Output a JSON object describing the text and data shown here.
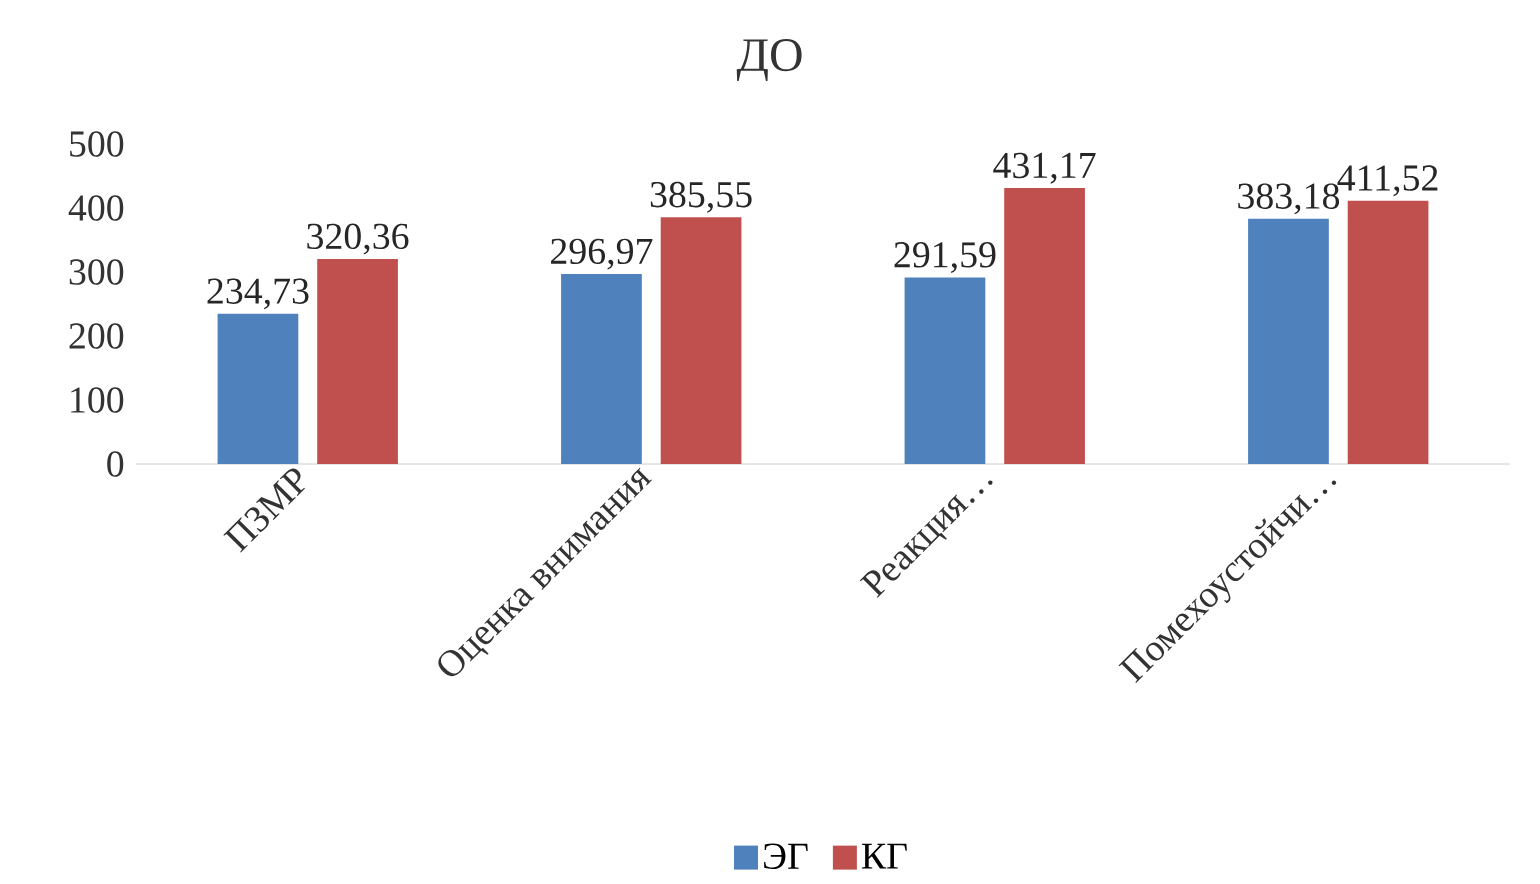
{
  "chart_data": {
    "type": "bar",
    "title": "ДО",
    "categories": [
      "ПЗМР",
      "Оценка внимания",
      "Реакция…",
      "Помехоустойчи…"
    ],
    "series": [
      {
        "name": "ЭГ",
        "color": "#4f81bd",
        "values": [
          234.73,
          296.97,
          291.59,
          383.18
        ],
        "value_labels": [
          "234,73",
          "296,97",
          "291,59",
          "383,18"
        ]
      },
      {
        "name": "КГ",
        "color": "#c0504d",
        "values": [
          320.36,
          385.55,
          431.17,
          411.52
        ],
        "value_labels": [
          "320,36",
          "385,55",
          "431,17",
          "411,52"
        ]
      }
    ],
    "ylim": [
      0,
      500
    ],
    "yticks": [
      0,
      100,
      200,
      300,
      400,
      500
    ],
    "legend": "bottom",
    "grid": false
  }
}
